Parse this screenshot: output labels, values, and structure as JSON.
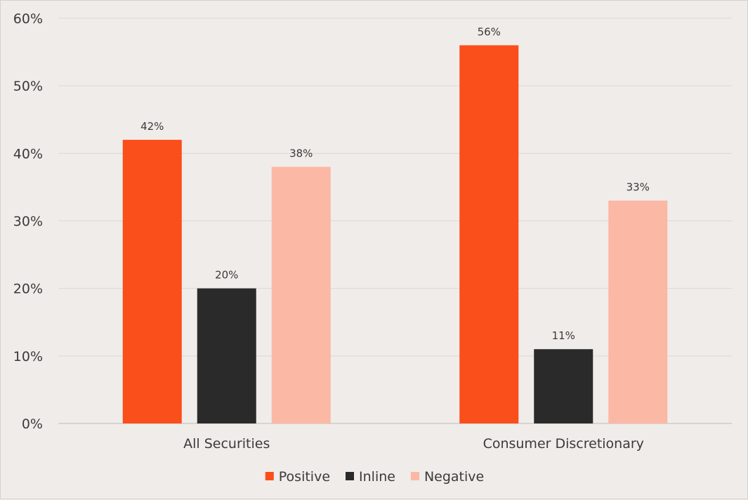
{
  "chart_data": {
    "type": "bar",
    "title": "",
    "xlabel": "",
    "ylabel": "",
    "ylim": [
      0,
      60
    ],
    "yticks": [
      0,
      10,
      20,
      30,
      40,
      50,
      60
    ],
    "ytick_suffix": "%",
    "grid": true,
    "legend_position": "bottom",
    "categories": [
      "All Securities",
      "Consumer Discretionary"
    ],
    "series": [
      {
        "name": "Positive",
        "color": "#fa4e1b",
        "values": [
          42,
          56
        ],
        "labels": [
          "42%",
          "56%"
        ]
      },
      {
        "name": "Inline",
        "color": "#2a2a2a",
        "values": [
          20,
          11
        ],
        "labels": [
          "20%",
          "11%"
        ]
      },
      {
        "name": "Negative",
        "color": "#fbb8a5",
        "values": [
          38,
          33
        ],
        "labels": [
          "38%",
          "33%"
        ]
      }
    ]
  }
}
